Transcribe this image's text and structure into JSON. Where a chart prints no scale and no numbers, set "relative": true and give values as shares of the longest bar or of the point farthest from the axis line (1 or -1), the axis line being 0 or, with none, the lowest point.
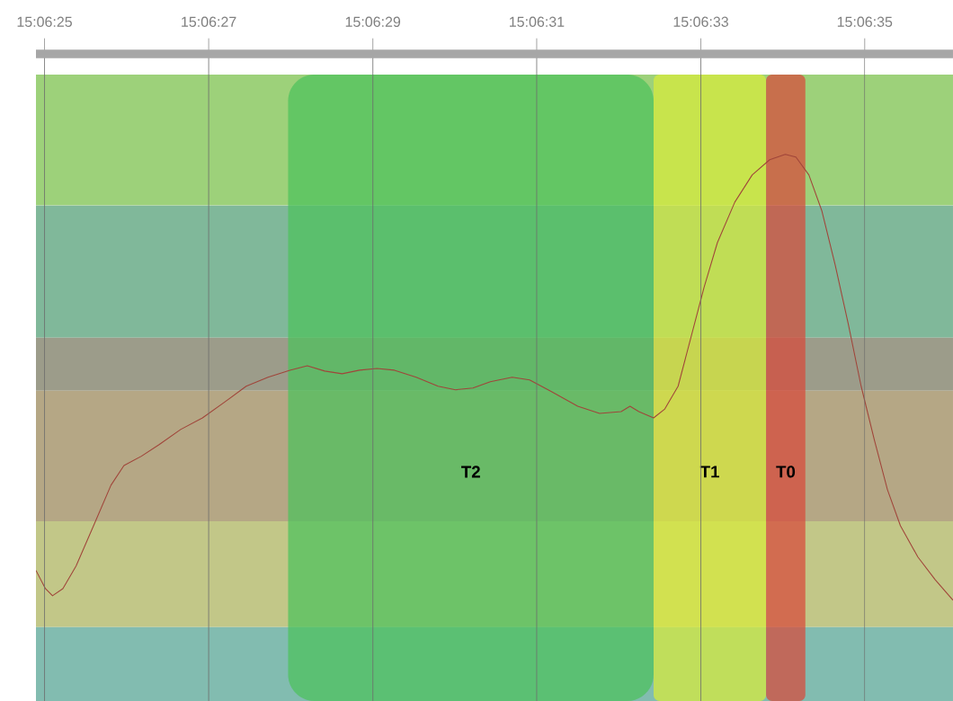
{
  "chart_data": {
    "type": "line",
    "relative": true,
    "color": "#a0453a",
    "grid": "x",
    "marker": "none",
    "line_style": "solid",
    "xlim": [
      15.106915,
      15.110021
    ],
    "xticks": [
      {
        "value": 15.106944,
        "label": "15:06:25"
      },
      {
        "value": 15.1075,
        "label": "15:06:27"
      },
      {
        "value": 15.108056,
        "label": "15:06:29"
      },
      {
        "value": 15.108611,
        "label": "15:06:31"
      },
      {
        "value": 15.109167,
        "label": "15:06:33"
      },
      {
        "value": 15.109722,
        "label": "15:06:35"
      }
    ],
    "x": [
      15.106915,
      15.106947,
      15.106971,
      15.107006,
      15.107051,
      15.10711,
      15.107169,
      15.107213,
      15.107272,
      15.107332,
      15.107405,
      15.107479,
      15.107553,
      15.107627,
      15.107701,
      15.107775,
      15.107834,
      15.107893,
      15.107952,
      15.108011,
      15.10807,
      15.108129,
      15.108203,
      15.108277,
      15.108336,
      15.108395,
      15.108454,
      15.108528,
      15.108587,
      15.108661,
      15.10875,
      15.108824,
      15.108897,
      15.108927,
      15.108957,
      15.109007,
      15.109045,
      15.10909,
      15.109134,
      15.109178,
      15.109223,
      15.109282,
      15.109341,
      15.1094,
      15.109453,
      15.109489,
      15.109533,
      15.109577,
      15.109622,
      15.109666,
      15.10971,
      15.109755,
      15.109799,
      15.109843,
      15.109902,
      15.109961,
      15.110021
    ],
    "values": [
      0.067,
      0.026,
      0.01,
      0.026,
      0.077,
      0.167,
      0.258,
      0.302,
      0.323,
      0.349,
      0.383,
      0.409,
      0.444,
      0.48,
      0.5,
      0.516,
      0.526,
      0.514,
      0.508,
      0.516,
      0.52,
      0.516,
      0.5,
      0.48,
      0.472,
      0.476,
      0.49,
      0.5,
      0.494,
      0.468,
      0.435,
      0.419,
      0.423,
      0.435,
      0.423,
      0.409,
      0.429,
      0.48,
      0.591,
      0.702,
      0.802,
      0.893,
      0.954,
      0.988,
      1,
      0.994,
      0.954,
      0.873,
      0.752,
      0.621,
      0.48,
      0.359,
      0.248,
      0.167,
      0.097,
      0.046,
      0
    ],
    "bands": [
      {
        "axis": "y",
        "from": 0.885,
        "to": 1.179,
        "color": "#9dd17a"
      },
      {
        "axis": "y",
        "from": 0.589,
        "to": 0.885,
        "color": "#80b89a"
      },
      {
        "axis": "y",
        "from": 0.47,
        "to": 0.589,
        "color": "#9c9c8a"
      },
      {
        "axis": "y",
        "from": 0.177,
        "to": 0.47,
        "color": "#b5a785"
      },
      {
        "axis": "y",
        "from": -0.06,
        "to": 0.177,
        "color": "#c2c788"
      },
      {
        "axis": "y",
        "from": -0.226,
        "to": -0.06,
        "color": "#82bcb0"
      },
      {
        "axis": "x",
        "from": 15.107769,
        "to": 15.109007,
        "label": "T2",
        "color": "#4cc25c"
      },
      {
        "axis": "x",
        "from": 15.109007,
        "to": 15.109388,
        "label": "T1",
        "color": "#d8ec3a"
      },
      {
        "axis": "x",
        "from": 15.109388,
        "to": 15.109521,
        "label": "T0",
        "color": "#d84a3a"
      }
    ]
  }
}
